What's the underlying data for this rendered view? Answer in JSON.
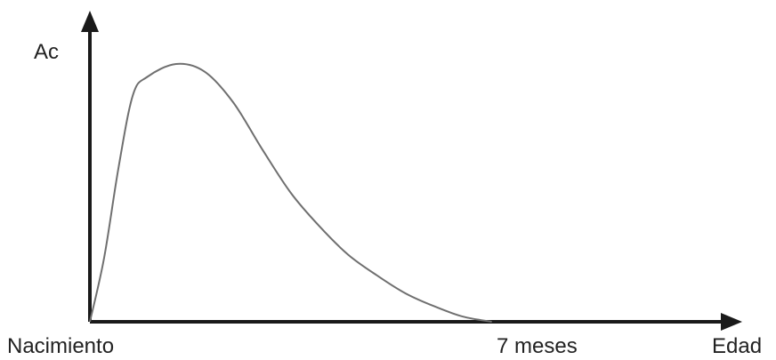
{
  "chart_data": {
    "type": "line",
    "title": "",
    "ylabel": "Ac",
    "xlabel": "Edad",
    "x_tick_labels": [
      {
        "label": "Nacimiento",
        "x": 0
      },
      {
        "label": "7 meses",
        "x": 7
      }
    ],
    "xlim": [
      0,
      9.5
    ],
    "ylim": [
      0,
      1
    ],
    "series": [
      {
        "x": [
          0,
          0.25,
          0.5,
          0.75,
          1.0,
          1.5,
          2.0,
          2.5,
          3.0,
          3.5,
          4.0,
          4.5,
          5.0,
          5.5,
          6.0,
          6.5,
          7.0
        ],
        "y": [
          0,
          0.25,
          0.6,
          0.88,
          0.95,
          1.0,
          0.97,
          0.85,
          0.67,
          0.5,
          0.37,
          0.26,
          0.18,
          0.11,
          0.06,
          0.02,
          0.0
        ],
        "color": "#6f6f6f"
      }
    ],
    "grid": false,
    "legend": "none"
  }
}
